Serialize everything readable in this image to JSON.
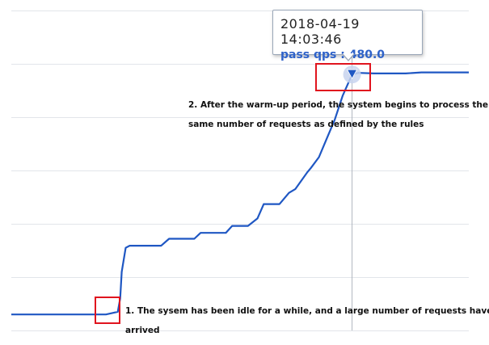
{
  "chart_data": {
    "type": "line",
    "title": "",
    "xlabel": "",
    "ylabel": "",
    "grid": true,
    "x_axis_visible": false,
    "y_axis_visible": false,
    "x_range": [
      0,
      580
    ],
    "y_range": [
      0,
      600
    ],
    "gridline_y_values": [
      0,
      100,
      200,
      300,
      400,
      500,
      600
    ],
    "series": [
      {
        "name": "",
        "color": "#1f57c3",
        "x": [
          0,
          100,
          120,
          135,
          138,
          140,
          145,
          150,
          155,
          190,
          200,
          232,
          240,
          272,
          280,
          300,
          312,
          320,
          340,
          352,
          360,
          375,
          380,
          390,
          400,
          410,
          420,
          432,
          440,
          460,
          500,
          520,
          560,
          580
        ],
        "y": [
          30,
          30,
          30,
          35,
          60,
          110,
          155,
          159,
          159,
          159,
          172,
          172,
          183,
          183,
          196,
          196,
          210,
          237,
          237,
          258,
          265,
          296,
          305,
          325,
          360,
          395,
          440,
          480,
          483,
          482,
          482,
          484,
          484,
          484
        ]
      }
    ],
    "crosshair_x": 432,
    "marker": {
      "x": 432,
      "y": 480
    },
    "tooltip": {
      "time": "2018-04-19 14:03:46",
      "series_label": "pass qps",
      "value": "480.0",
      "text": "pass qps : 480.0"
    },
    "annotations": [
      {
        "id": "peak",
        "text_lines": [
          "2. After the warm-up period, the system begins to process the",
          "same number of requests as defined by the rules"
        ]
      },
      {
        "id": "start",
        "text_lines": [
          "1. The sysem has been idle for a while, and a large number of requests have",
          "arrived"
        ]
      }
    ],
    "highlight_color": "#e0141e"
  }
}
